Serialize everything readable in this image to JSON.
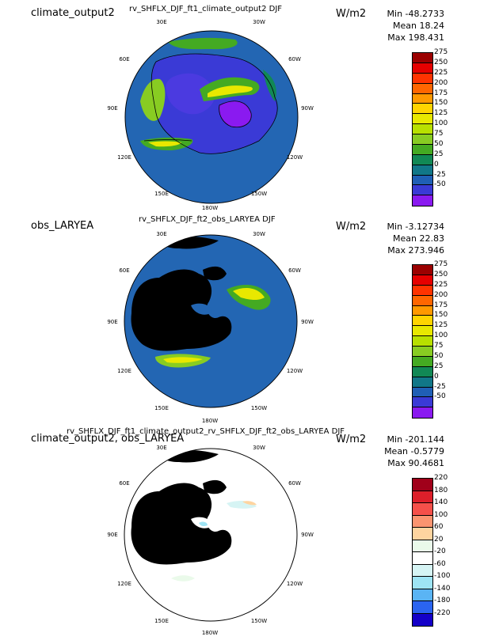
{
  "longitude_labels": [
    "30E",
    "30W",
    "60E",
    "60W",
    "90E",
    "90W",
    "120E",
    "120W",
    "150E",
    "150W",
    "180W"
  ],
  "panels": [
    {
      "left_title": "climate_output2",
      "center_title": "rv_SHFLX_DJF_ft1_climate_output2  DJF",
      "units": "W/m2",
      "stats": [
        "Min -48.2733",
        "Mean 18.24",
        "Max 198.431"
      ],
      "colorbar_ticks": [
        "275",
        "250",
        "225",
        "200",
        "175",
        "150",
        "125",
        "100",
        "75",
        "50",
        "25",
        "0",
        "-25",
        "-50"
      ],
      "colorbar_colors": [
        "#9b0000",
        "#e60000",
        "#ff3300",
        "#ff6600",
        "#ff9900",
        "#ffd400",
        "#e8e800",
        "#b8e000",
        "#88cc22",
        "#44aa22",
        "#118855",
        "#117788",
        "#1f5fb5",
        "#3a3ad6",
        "#8a1af0"
      ],
      "ocean_color": "#2366b3",
      "land_color": null
    },
    {
      "left_title": "obs_LARYEA",
      "center_title": "rv_SHFLX_DJF_ft2_obs_LARYEA  DJF",
      "units": "W/m2",
      "stats": [
        "Min -3.12734",
        "Mean 22.83",
        "Max 273.946"
      ],
      "colorbar_ticks": [
        "275",
        "250",
        "225",
        "200",
        "175",
        "150",
        "125",
        "100",
        "75",
        "50",
        "25",
        "0",
        "-25",
        "-50"
      ],
      "colorbar_colors": [
        "#9b0000",
        "#e60000",
        "#ff3300",
        "#ff6600",
        "#ff9900",
        "#ffd400",
        "#e8e800",
        "#b8e000",
        "#88cc22",
        "#44aa22",
        "#118855",
        "#117788",
        "#1f5fb5",
        "#3a3ad6",
        "#8a1af0"
      ],
      "ocean_color": "#2366b3",
      "land_color": "#000000"
    },
    {
      "left_title": "climate_output2, obs_LARYEA",
      "center_title": "rv_SHFLX_DJF_ft1_climate_output2_rv_SHFLX_DJF_ft2_obs_LARYEA  DJF",
      "units": "W/m2",
      "stats": [
        "Min -201.144",
        "Mean -0.5779",
        "Max 90.4681"
      ],
      "colorbar_ticks": [
        "220",
        "180",
        "140",
        "100",
        "60",
        "20",
        "-20",
        "-60",
        "-100",
        "-140",
        "-180",
        "-220"
      ],
      "colorbar_colors": [
        "#a0001a",
        "#dd1f2a",
        "#f5504a",
        "#fa9470",
        "#fed4a0",
        "#eafaea",
        "#ffffff",
        "#d6f4f4",
        "#9ee4f4",
        "#5ab4f4",
        "#2a64f0",
        "#1400c8"
      ],
      "ocean_color": "#ffffff",
      "land_color": "#000000"
    }
  ]
}
